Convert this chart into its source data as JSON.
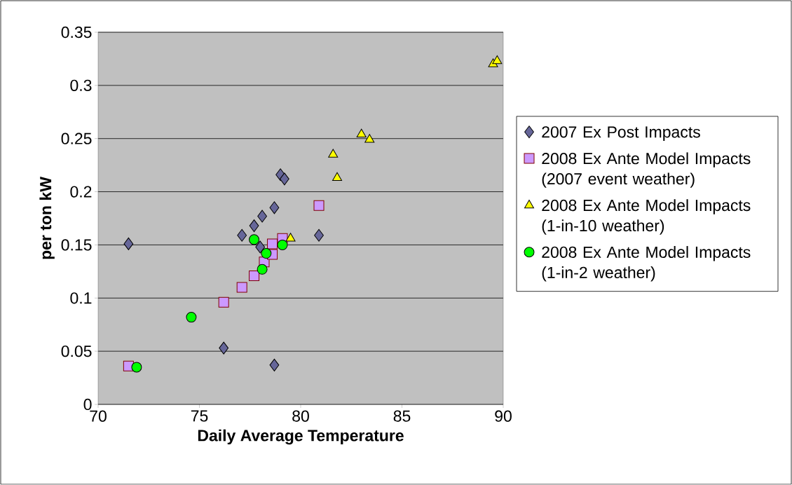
{
  "chart_data": {
    "type": "scatter",
    "xlabel": "Daily Average Temperature",
    "ylabel": "per ton kW",
    "xlim": [
      70,
      90
    ],
    "ylim": [
      0,
      0.35
    ],
    "xticks": [
      70,
      75,
      80,
      85,
      90
    ],
    "yticks": [
      0,
      0.05,
      0.1,
      0.15,
      0.2,
      0.25,
      0.3,
      0.35
    ],
    "grid": "y",
    "legend": "right",
    "series": [
      {
        "name": "2007 Ex Post Impacts",
        "color": "#666699",
        "marker": "diamond",
        "x": [
          71.5,
          76.2,
          78.7,
          77.1,
          77.7,
          78.1,
          78.7,
          79.0,
          79.2,
          80.9,
          78.0
        ],
        "values": [
          0.151,
          0.053,
          0.037,
          0.159,
          0.168,
          0.177,
          0.185,
          0.216,
          0.212,
          0.159,
          0.148
        ]
      },
      {
        "name": "2008 Ex Ante Model Impacts (2007 event weather)",
        "color": "#cc99ff",
        "marker": "square",
        "x": [
          71.5,
          76.2,
          77.1,
          77.7,
          78.0,
          78.2,
          78.6,
          78.6,
          78.9,
          79.1,
          80.9
        ],
        "values": [
          0.036,
          0.096,
          0.11,
          0.121,
          null,
          0.134,
          0.141,
          0.151,
          null,
          0.156,
          0.187
        ]
      },
      {
        "name": "2008 Ex Ante Model Impacts (1-in-10 weather)",
        "color": "#ffff00",
        "marker": "triangle",
        "x": [
          79.5,
          81.6,
          81.8,
          83.0,
          83.4,
          89.5,
          89.7
        ],
        "values": [
          0.156,
          0.235,
          0.213,
          0.254,
          0.249,
          0.32,
          0.323
        ]
      },
      {
        "name": "2008 Ex Ante Model Impacts (1-in-2 weather)",
        "color": "#00ff00",
        "marker": "circle",
        "x": [
          71.9,
          74.6,
          77.7,
          78.3,
          78.1,
          79.1
        ],
        "values": [
          0.035,
          0.082,
          0.155,
          0.142,
          0.127,
          0.15
        ]
      }
    ]
  }
}
